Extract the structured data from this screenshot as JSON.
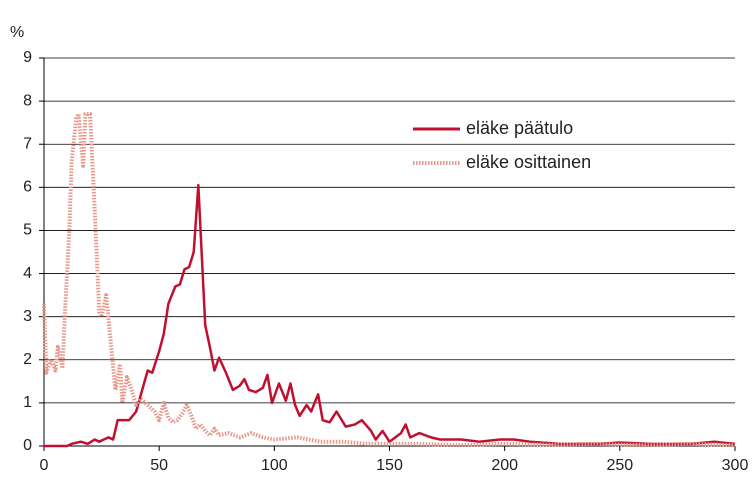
{
  "chart_data": {
    "type": "line",
    "y_label": "%",
    "xlim": [
      0,
      300
    ],
    "xticks": [
      0,
      50,
      100,
      150,
      200,
      250,
      300
    ],
    "ylim": [
      0,
      9
    ],
    "yticks": [
      0,
      1,
      2,
      3,
      4,
      5,
      6,
      7,
      8,
      9
    ],
    "grid": true,
    "legend": "top-right",
    "series": [
      {
        "name": "eläke päätulo",
        "color": "#c0102f",
        "style": "solid",
        "x": [
          0,
          10,
          12,
          16,
          19,
          22,
          24,
          26,
          28,
          30,
          32,
          37,
          40,
          45,
          47,
          50,
          52,
          54,
          57,
          59,
          61,
          63,
          65,
          67,
          70,
          72,
          74,
          76,
          79,
          82,
          85,
          87,
          89,
          92,
          95,
          97,
          99,
          102,
          105,
          107,
          109,
          111,
          114,
          116,
          119,
          121,
          124,
          127,
          131,
          135,
          138,
          142,
          144,
          147,
          150,
          155,
          157,
          159,
          163,
          168,
          172,
          181,
          189,
          198,
          204,
          211,
          224,
          241,
          250,
          263,
          281,
          291,
          300
        ],
        "values": [
          0,
          0,
          0.05,
          0.1,
          0.05,
          0.15,
          0.1,
          0.15,
          0.2,
          0.15,
          0.6,
          0.6,
          0.8,
          1.75,
          1.7,
          2.2,
          2.6,
          3.3,
          3.7,
          3.75,
          4.1,
          4.15,
          4.5,
          6.05,
          2.8,
          2.3,
          1.75,
          2.05,
          1.7,
          1.3,
          1.4,
          1.55,
          1.3,
          1.25,
          1.35,
          1.65,
          1.0,
          1.45,
          1.05,
          1.45,
          0.95,
          0.7,
          0.95,
          0.8,
          1.2,
          0.6,
          0.55,
          0.8,
          0.45,
          0.5,
          0.6,
          0.35,
          0.15,
          0.35,
          0.1,
          0.3,
          0.5,
          0.2,
          0.3,
          0.2,
          0.15,
          0.15,
          0.1,
          0.15,
          0.15,
          0.1,
          0.05,
          0.05,
          0.08,
          0.05,
          0.05,
          0.1,
          0.05
        ]
      },
      {
        "name": "eläke osittainen",
        "color": "#e8968a",
        "style": "dotted",
        "x": [
          0,
          1,
          3,
          5,
          6,
          8,
          9,
          11,
          12,
          14,
          15,
          17,
          18,
          20,
          22,
          24,
          25,
          27,
          29,
          31,
          33,
          34,
          36,
          38,
          40,
          42,
          44,
          46,
          48,
          50,
          52,
          54,
          56,
          58,
          60,
          62,
          64,
          66,
          68,
          70,
          72,
          74,
          76,
          80,
          85,
          90,
          95,
          100,
          110,
          120,
          130,
          140,
          150,
          160,
          180,
          200,
          220,
          240,
          260,
          280,
          300
        ],
        "values": [
          3.3,
          1.7,
          2.0,
          1.75,
          2.3,
          1.8,
          3.0,
          5.0,
          6.6,
          7.6,
          7.7,
          6.5,
          7.7,
          7.7,
          5.5,
          3.1,
          3.0,
          3.5,
          2.4,
          1.3,
          1.9,
          1.0,
          1.6,
          1.3,
          0.95,
          1.1,
          1.0,
          0.9,
          0.8,
          0.6,
          1.0,
          0.65,
          0.55,
          0.6,
          0.75,
          0.95,
          0.7,
          0.4,
          0.5,
          0.35,
          0.25,
          0.4,
          0.25,
          0.3,
          0.2,
          0.3,
          0.2,
          0.15,
          0.2,
          0.1,
          0.1,
          0.05,
          0.05,
          0.05,
          0.02,
          0.05,
          0.03,
          0.05,
          0.02,
          0.05,
          0.02
        ]
      }
    ]
  }
}
